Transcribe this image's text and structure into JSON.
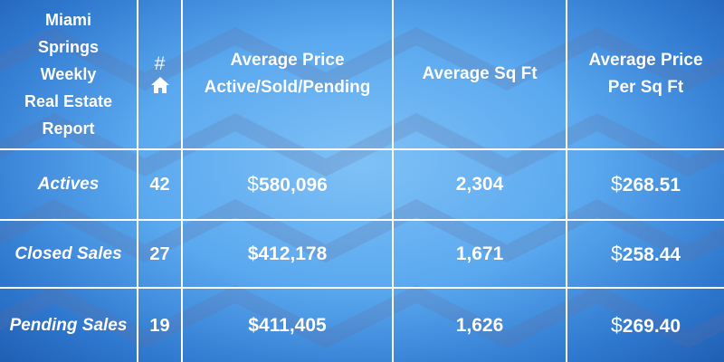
{
  "colors": {
    "background_light": "#7fc1f6",
    "background_dark": "#1f5fb4",
    "grid_lines": "#ffffff",
    "text": "#ffffff"
  },
  "header": {
    "title_lines": [
      "Miami",
      "Springs",
      "Weekly",
      "Real Estate",
      "Report"
    ],
    "count_symbol": "#",
    "count_icon": "home-icon",
    "avg_price_lines": [
      "Average Price",
      "Active/Sold/Pending"
    ],
    "avg_sqft": "Average Sq Ft",
    "avg_price_sqft_lines": [
      "Average Price",
      "Per Sq Ft"
    ]
  },
  "rows": [
    {
      "label": "Actives",
      "count": "42",
      "currency": "$",
      "avg_price": "580,096",
      "avg_sqft": "2,304",
      "avg_price_sqft": "268.51"
    },
    {
      "label": "Closed Sales",
      "count": "27",
      "currency": "$",
      "avg_price": "412,178",
      "avg_sqft": "1,671",
      "avg_price_sqft": "258.44"
    },
    {
      "label": "Pending Sales",
      "count": "19",
      "currency": "$",
      "avg_price": "411,405",
      "avg_sqft": "1,626",
      "avg_price_sqft": "269.40"
    }
  ]
}
